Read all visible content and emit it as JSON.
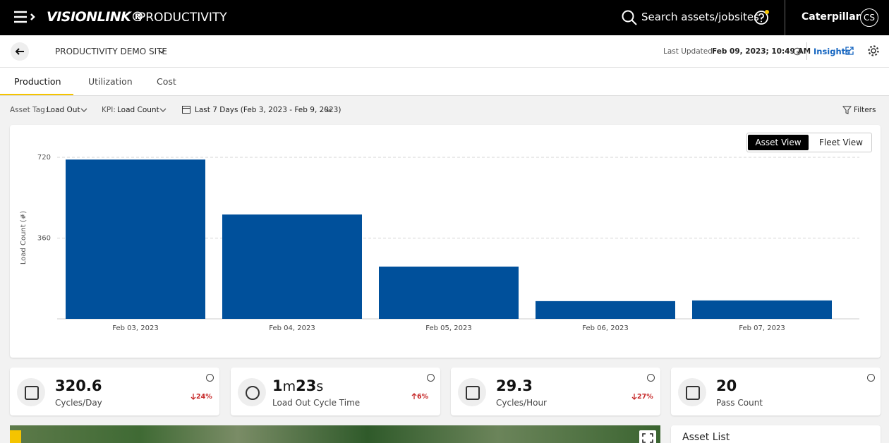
{
  "header": {
    "brand": "VISIONLINK®",
    "product": "PRODUCTIVITY",
    "search_placeholder": "Search assets/jobsites",
    "account": "Caterpillar",
    "user_initials": "CS"
  },
  "subheader": {
    "site": "PRODUCTIVITY DEMO SITE",
    "last_updated_label": "Last Updated:",
    "last_updated": "Feb 09, 2023; 10:49 AM",
    "insights": "Insights"
  },
  "tabs": [
    "Production",
    "Utilization",
    "Cost"
  ],
  "filters": {
    "asset_tag_label": "Asset Tag:",
    "asset_tag": "Load Out",
    "kpi_label": "KPI:",
    "kpi": "Load Count",
    "date_range": "Last 7 Days (Feb 3, 2023 - Feb 9, 2023)",
    "filters": "Filters"
  },
  "view_toggle": [
    "Asset View",
    "Fleet View"
  ],
  "chart_data": {
    "type": "bar",
    "y_label": "Load Count (#)",
    "categories": [
      "Feb 03, 2023",
      "Feb 04, 2023",
      "Feb 05, 2023",
      "Feb 06, 2023",
      "Feb 07, 2023"
    ],
    "values": [
      710,
      465,
      233,
      79,
      82
    ],
    "color": "#00509b",
    "ylim": [
      0,
      720
    ],
    "yticks": [
      360,
      720
    ],
    "grid": true
  },
  "kpis": [
    {
      "value": "320.6",
      "label": "Cycles/Day",
      "change": "24%",
      "direction": "down"
    },
    {
      "value_parts": [
        "1",
        "m",
        "23",
        "s"
      ],
      "label": "Load Out Cycle Time",
      "change": "6%",
      "direction": "up"
    },
    {
      "value": "29.3",
      "label": "Cycles/Hour",
      "change": "27%",
      "direction": "down"
    },
    {
      "value": "20",
      "label": "Pass Count"
    }
  ],
  "asset_list": {
    "title": "Asset List"
  }
}
